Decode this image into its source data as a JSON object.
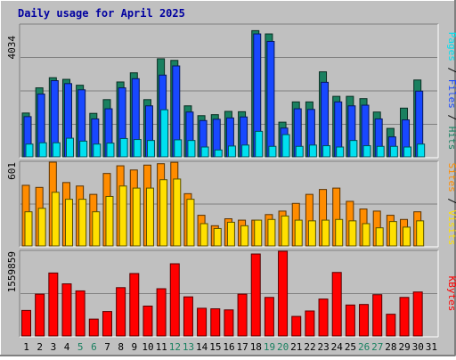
{
  "chart_data": [
    {
      "type": "bar",
      "title": "Daily usage for April 2025",
      "ylabel_max": "4034",
      "side_label": [
        {
          "text": "Pages",
          "color": "#00e0f0"
        },
        {
          "text": " / ",
          "color": "#000000"
        },
        {
          "text": "Files",
          "color": "#1848ff"
        },
        {
          "text": " / ",
          "color": "#000000"
        },
        {
          "text": "Hits",
          "color": "#1a8060"
        }
      ],
      "ylim": [
        0,
        4034
      ],
      "categories": [
        "1",
        "2",
        "3",
        "4",
        "5",
        "6",
        "7",
        "8",
        "9",
        "10",
        "11",
        "12",
        "13",
        "14",
        "15",
        "16",
        "17",
        "18",
        "19",
        "20",
        "21",
        "22",
        "23",
        "24",
        "25",
        "26",
        "27",
        "28",
        "29",
        "30",
        "31"
      ],
      "series": [
        {
          "name": "Hits",
          "color": "#1a8060",
          "values": [
            1340,
            2110,
            2420,
            2370,
            2190,
            1330,
            1750,
            2290,
            2570,
            1750,
            3000,
            2950,
            1560,
            1260,
            1290,
            1390,
            1380,
            3860,
            3760,
            1060,
            1680,
            1680,
            2600,
            1850,
            1850,
            1780,
            1370,
            870,
            1490,
            2350,
            0
          ]
        },
        {
          "name": "Files",
          "color": "#1848ff",
          "values": [
            1230,
            1920,
            2330,
            2240,
            2050,
            1160,
            1470,
            2110,
            2390,
            1560,
            2500,
            2780,
            1370,
            1110,
            1150,
            1190,
            1220,
            3760,
            3530,
            880,
            1470,
            1450,
            2280,
            1680,
            1560,
            1580,
            1160,
            610,
            1130,
            2010,
            0
          ]
        },
        {
          "name": "Pages",
          "color": "#00e0f0",
          "values": [
            390,
            430,
            430,
            570,
            480,
            390,
            420,
            560,
            530,
            500,
            1440,
            520,
            500,
            300,
            210,
            330,
            360,
            780,
            320,
            680,
            320,
            360,
            340,
            300,
            500,
            340,
            320,
            320,
            300,
            390,
            0
          ]
        }
      ]
    },
    {
      "type": "bar",
      "ylabel_max": "601",
      "side_label": [
        {
          "text": "Sites",
          "color": "#ff8c00"
        },
        {
          "text": " / ",
          "color": "#000000"
        },
        {
          "text": "Visits",
          "color": "#ffe000"
        }
      ],
      "ylim": [
        0,
        601
      ],
      "categories": [
        "1",
        "2",
        "3",
        "4",
        "5",
        "6",
        "7",
        "8",
        "9",
        "10",
        "11",
        "12",
        "13",
        "14",
        "15",
        "16",
        "17",
        "18",
        "19",
        "20",
        "21",
        "22",
        "23",
        "24",
        "25",
        "26",
        "27",
        "28",
        "29",
        "30",
        "31"
      ],
      "series": [
        {
          "name": "Sites",
          "color": "#ff8c00",
          "values": [
            435,
            420,
            601,
            455,
            430,
            370,
            520,
            575,
            545,
            580,
            590,
            600,
            375,
            220,
            145,
            195,
            185,
            185,
            225,
            250,
            305,
            370,
            405,
            415,
            320,
            265,
            250,
            220,
            190,
            245,
            0
          ]
        },
        {
          "name": "Visits",
          "color": "#ffe000",
          "values": [
            245,
            270,
            385,
            335,
            335,
            245,
            355,
            430,
            415,
            415,
            475,
            480,
            335,
            160,
            125,
            170,
            145,
            185,
            190,
            215,
            185,
            180,
            185,
            190,
            180,
            160,
            130,
            175,
            135,
            180,
            0
          ]
        }
      ]
    },
    {
      "type": "bar",
      "ylabel_max": "1559859",
      "side_label": [
        {
          "text": "KBytes",
          "color": "#ff0000"
        }
      ],
      "ylim": [
        0,
        1559859
      ],
      "categories": [
        "1",
        "2",
        "3",
        "4",
        "5",
        "6",
        "7",
        "8",
        "9",
        "10",
        "11",
        "12",
        "13",
        "14",
        "15",
        "16",
        "17",
        "18",
        "19",
        "20",
        "21",
        "22",
        "23",
        "24",
        "25",
        "26",
        "27",
        "28",
        "29",
        "30",
        "31"
      ],
      "series": [
        {
          "name": "KBytes",
          "color": "#ff0000",
          "values": [
            470000,
            770000,
            1160000,
            960000,
            830000,
            310000,
            450000,
            890000,
            1150000,
            550000,
            870000,
            1330000,
            720000,
            510000,
            500000,
            480000,
            770000,
            1510000,
            710000,
            1560000,
            360000,
            460000,
            680000,
            1170000,
            570000,
            580000,
            760000,
            400000,
            710000,
            810000,
            0
          ]
        }
      ]
    }
  ],
  "x_tick_colors": {
    "weekday": "#000000",
    "weekend": "#1a8060"
  },
  "weekend_days": [
    "5",
    "6",
    "12",
    "13",
    "19",
    "20",
    "26",
    "27"
  ]
}
